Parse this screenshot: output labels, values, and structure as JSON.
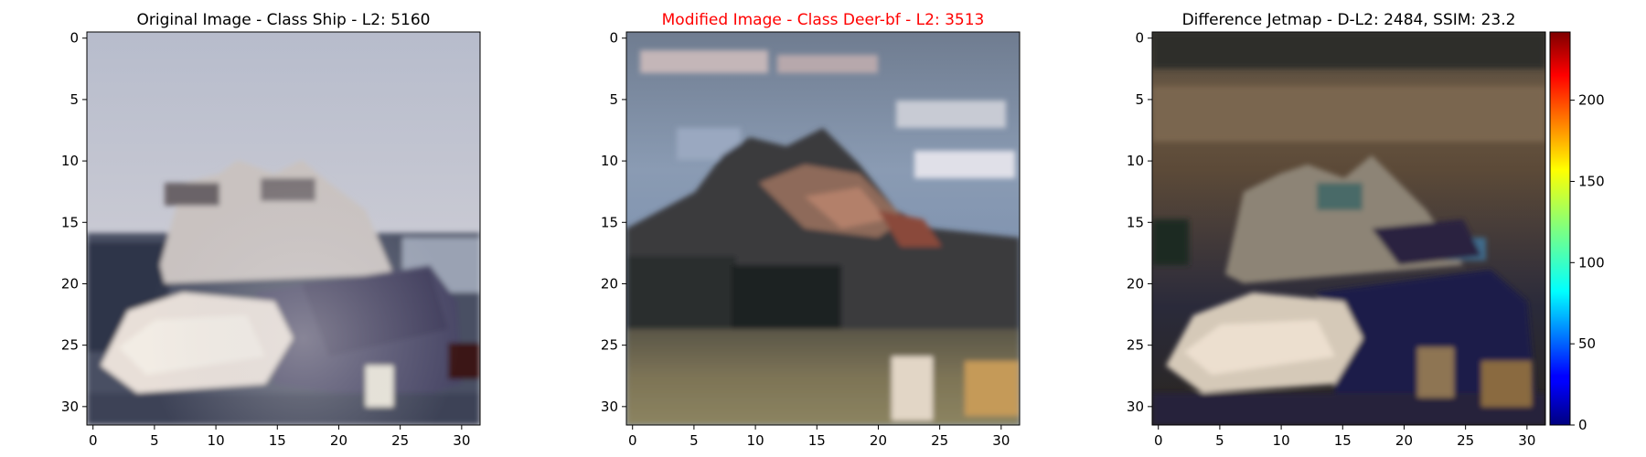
{
  "chart_data": [
    {
      "type": "heatmap",
      "title": "Original Image - Class Ship - L2: 5160",
      "title_color": "#000000",
      "xlim": [
        -0.5,
        31.5
      ],
      "ylim": [
        31.5,
        -0.5
      ],
      "xticks": [
        0,
        5,
        10,
        15,
        20,
        25,
        30
      ],
      "yticks": [
        0,
        5,
        10,
        15,
        20,
        25,
        30
      ],
      "grid": false,
      "image": "32x32 pixel photo of a white and dark-blue ship on water under a pale sky"
    },
    {
      "type": "heatmap",
      "title": "Modified Image - Class Deer-bf - L2: 3513",
      "title_color": "#ff0000",
      "xlim": [
        -0.5,
        31.5
      ],
      "ylim": [
        31.5,
        -0.5
      ],
      "xticks": [
        0,
        5,
        10,
        15,
        20,
        25,
        30
      ],
      "yticks": [
        0,
        5,
        10,
        15,
        20,
        25,
        30
      ],
      "grid": false,
      "image": "32x32 perturbed image with blue cloudy sky, dark figure and brown ground"
    },
    {
      "type": "heatmap",
      "title": "Difference Jetmap - D-L2: 2484, SSIM: 23.2",
      "title_color": "#000000",
      "xlim": [
        -0.5,
        31.5
      ],
      "ylim": [
        31.5,
        -0.5
      ],
      "xticks": [
        0,
        5,
        10,
        15,
        20,
        25,
        30
      ],
      "yticks": [
        0,
        5,
        10,
        15,
        20,
        25,
        30
      ],
      "grid": false,
      "colorbar": {
        "colormap": "jet",
        "range": [
          0,
          242
        ],
        "ticks": [
          0,
          50,
          100,
          150,
          200
        ]
      },
      "image": "32x32 difference map over dark brown background showing ship shape"
    }
  ]
}
